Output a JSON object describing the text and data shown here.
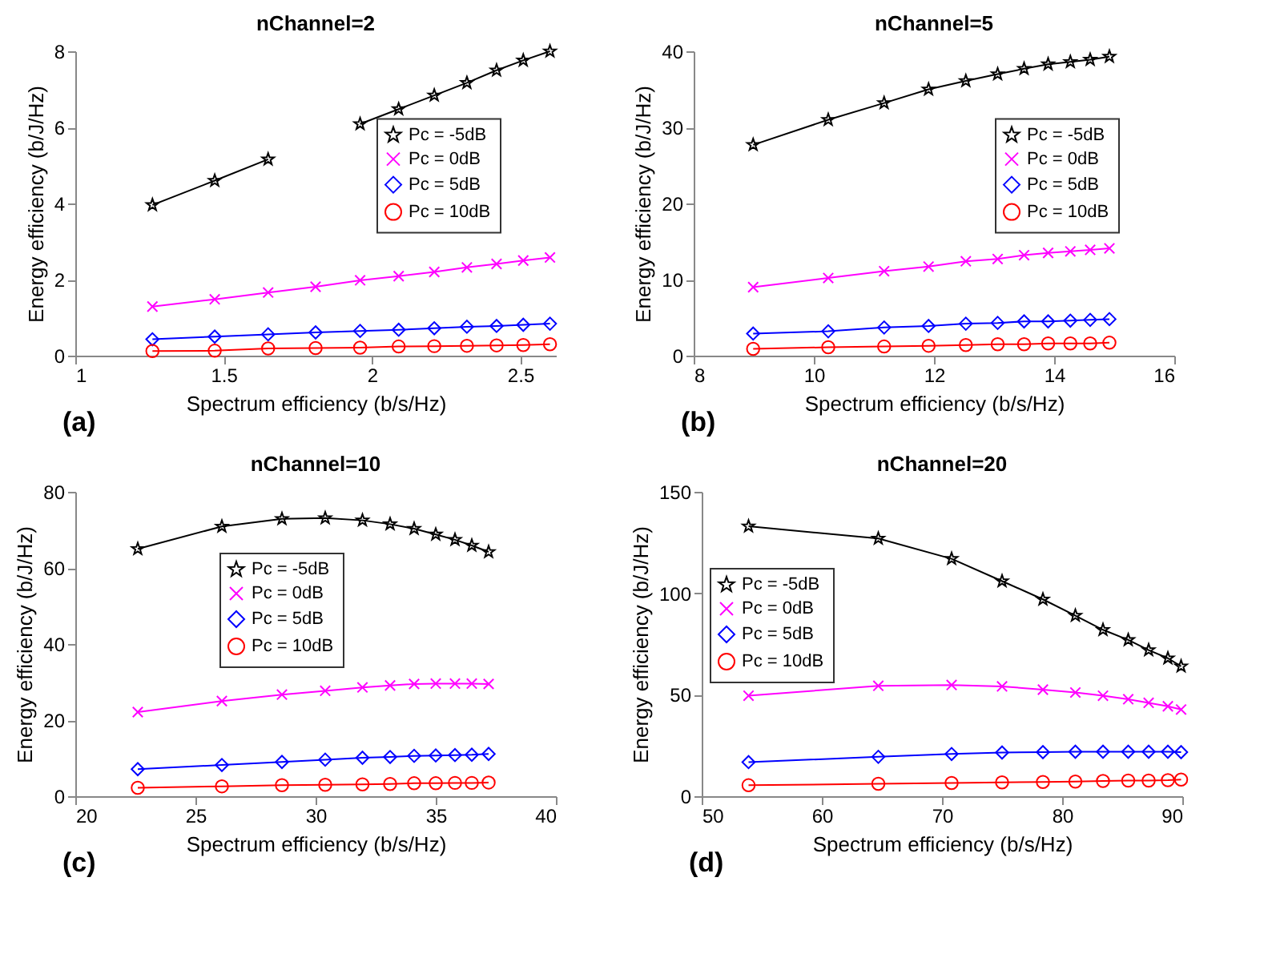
{
  "chart_data": [
    {
      "type": "line",
      "title": "nChannel=2",
      "xlabel": "Spectrum efficiency (b/s/Hz)",
      "ylabel": "Energy efficiency (b/J/Hz)",
      "annotations": [
        "(a)"
      ],
      "legend": "right",
      "grid": false,
      "xlim": [
        1,
        2.62
      ],
      "xticks": [
        1,
        1.5,
        2,
        2.5
      ],
      "ylim": [
        0,
        8
      ],
      "yticks": [
        0,
        2,
        4,
        6,
        8
      ],
      "x": [
        1.26,
        1.47,
        1.65,
        1.81,
        1.96,
        2.09,
        2.21,
        2.32,
        2.42,
        2.51,
        2.6
      ],
      "series": [
        {
          "name": "Pc = -5dB",
          "color": "#000000",
          "marker": "star",
          "values": [
            3.96,
            4.6,
            5.16,
            null,
            6.09,
            6.48,
            6.84,
            7.17,
            7.5,
            7.76,
            8.0
          ]
        },
        {
          "name": "Pc = 0dB",
          "color": "#ff00ff",
          "marker": "cross",
          "values": [
            1.29,
            1.48,
            1.66,
            1.81,
            1.98,
            2.09,
            2.2,
            2.32,
            2.41,
            2.5,
            2.58
          ]
        },
        {
          "name": "Pc = 5dB",
          "color": "#0000ff",
          "marker": "diamond",
          "values": [
            0.43,
            0.5,
            0.56,
            0.61,
            0.65,
            0.68,
            0.72,
            0.76,
            0.78,
            0.81,
            0.84
          ]
        },
        {
          "name": "Pc = 10dB",
          "color": "#ff0000",
          "marker": "circle",
          "values": [
            0.12,
            0.13,
            0.19,
            0.2,
            0.21,
            0.24,
            0.25,
            0.26,
            0.27,
            0.28,
            0.3
          ]
        }
      ]
    },
    {
      "type": "line",
      "title": "nChannel=5",
      "xlabel": "Spectrum efficiency (b/s/Hz)",
      "ylabel": "Energy efficiency (b/J/Hz)",
      "annotations": [
        "(b)"
      ],
      "legend": "right",
      "grid": false,
      "xlim": [
        8,
        16
      ],
      "xticks": [
        8,
        10,
        12,
        14,
        16
      ],
      "ylim": [
        0,
        40
      ],
      "yticks": [
        0,
        10,
        20,
        30,
        40
      ],
      "x": [
        8.99,
        10.24,
        11.17,
        11.91,
        12.53,
        13.06,
        13.5,
        13.9,
        14.27,
        14.6,
        14.92
      ],
      "series": [
        {
          "name": "Pc = -5dB",
          "color": "#000000",
          "marker": "star",
          "values": [
            27.7,
            31.0,
            33.2,
            35.0,
            36.1,
            37.0,
            37.7,
            38.3,
            38.6,
            38.9,
            39.3
          ]
        },
        {
          "name": "Pc = 0dB",
          "color": "#ff00ff",
          "marker": "cross",
          "values": [
            9.0,
            10.2,
            11.1,
            11.7,
            12.4,
            12.7,
            13.2,
            13.5,
            13.7,
            13.9,
            14.1
          ]
        },
        {
          "name": "Pc = 5dB",
          "color": "#0000ff",
          "marker": "diamond",
          "values": [
            2.9,
            3.2,
            3.7,
            3.9,
            4.2,
            4.3,
            4.5,
            4.5,
            4.6,
            4.7,
            4.8
          ]
        },
        {
          "name": "Pc = 10dB",
          "color": "#ff0000",
          "marker": "circle",
          "values": [
            0.9,
            1.1,
            1.2,
            1.3,
            1.4,
            1.5,
            1.5,
            1.6,
            1.6,
            1.6,
            1.7
          ]
        }
      ]
    },
    {
      "type": "line",
      "title": "nChannel=10",
      "xlabel": "Spectrum efficiency (b/s/Hz)",
      "ylabel": "Energy efficiency (b/J/Hz)",
      "annotations": [
        "(c)"
      ],
      "legend": "top",
      "grid": false,
      "xlim": [
        20,
        40
      ],
      "xticks": [
        20,
        25,
        30,
        35,
        40
      ],
      "ylim": [
        0,
        80
      ],
      "yticks": [
        0,
        20,
        40,
        60,
        80
      ],
      "x": [
        22.6,
        26.1,
        28.6,
        30.4,
        31.95,
        33.1,
        34.1,
        35.0,
        35.8,
        36.5,
        37.2
      ],
      "series": [
        {
          "name": "Pc = -5dB",
          "color": "#000000",
          "marker": "star",
          "values": [
            65.0,
            70.9,
            72.9,
            73.1,
            72.5,
            71.5,
            70.3,
            68.8,
            67.4,
            65.9,
            64.2
          ]
        },
        {
          "name": "Pc = 0dB",
          "color": "#ff00ff",
          "marker": "cross",
          "values": [
            22.1,
            25.0,
            26.7,
            27.7,
            28.6,
            29.1,
            29.5,
            29.6,
            29.6,
            29.6,
            29.5
          ]
        },
        {
          "name": "Pc = 5dB",
          "color": "#0000ff",
          "marker": "diamond",
          "values": [
            7.1,
            8.2,
            9.0,
            9.6,
            10.1,
            10.3,
            10.6,
            10.7,
            10.8,
            10.9,
            11.1
          ]
        },
        {
          "name": "Pc = 10dB",
          "color": "#ff0000",
          "marker": "circle",
          "values": [
            2.2,
            2.6,
            2.9,
            3.0,
            3.1,
            3.2,
            3.4,
            3.4,
            3.5,
            3.5,
            3.6
          ]
        }
      ]
    },
    {
      "type": "line",
      "title": "nChannel=20",
      "xlabel": "Spectrum efficiency (b/s/Hz)",
      "ylabel": "Energy efficiency (b/J/Hz)",
      "annotations": [
        "(d)"
      ],
      "legend": "left",
      "grid": false,
      "xlim": [
        50,
        90
      ],
      "xticks": [
        50,
        60,
        70,
        80,
        90
      ],
      "ylim": [
        0,
        150
      ],
      "yticks": [
        0,
        50,
        100,
        150
      ],
      "x": [
        53.9,
        64.7,
        70.8,
        75.0,
        78.4,
        81.1,
        83.4,
        85.5,
        87.2,
        88.8,
        89.9
      ],
      "series": [
        {
          "name": "Pc = -5dB",
          "color": "#000000",
          "marker": "star",
          "values": [
            133,
            127,
            117,
            106,
            97,
            89,
            82,
            77,
            72,
            68,
            64
          ]
        },
        {
          "name": "Pc = 0dB",
          "color": "#ff00ff",
          "marker": "cross",
          "values": [
            49.5,
            54.4,
            54.8,
            54.1,
            52.5,
            51.1,
            49.5,
            47.8,
            46.0,
            44.3,
            42.7
          ]
        },
        {
          "name": "Pc = 5dB",
          "color": "#0000ff",
          "marker": "diamond",
          "values": [
            16.8,
            19.4,
            20.8,
            21.5,
            21.7,
            21.9,
            21.9,
            21.9,
            21.9,
            21.9,
            21.7
          ]
        },
        {
          "name": "Pc = 10dB",
          "color": "#ff0000",
          "marker": "circle",
          "values": [
            5.4,
            6.1,
            6.5,
            6.8,
            7.0,
            7.2,
            7.5,
            7.7,
            7.7,
            7.9,
            8.2
          ]
        }
      ]
    }
  ]
}
